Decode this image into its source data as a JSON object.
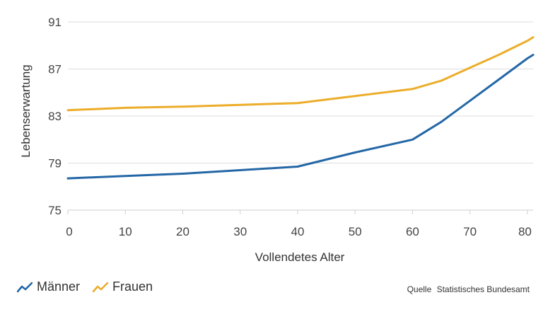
{
  "chart_data": {
    "type": "line",
    "xlabel": "Vollendetes Alter",
    "ylabel": "Lebenserwartung",
    "xlim": [
      0,
      81
    ],
    "ylim": [
      75,
      91
    ],
    "x_ticks": [
      0,
      10,
      20,
      30,
      40,
      50,
      60,
      70,
      80
    ],
    "y_ticks": [
      75,
      79,
      83,
      87,
      91
    ],
    "grid": true,
    "legend_position": "bottom-left",
    "series": [
      {
        "name": "Männer",
        "color": "#2467a6",
        "x": [
          0,
          10,
          20,
          30,
          40,
          50,
          60,
          65,
          70,
          75,
          80,
          81
        ],
        "y": [
          77.7,
          77.9,
          78.1,
          78.4,
          78.7,
          79.9,
          81.0,
          82.5,
          84.3,
          86.1,
          87.9,
          88.2
        ]
      },
      {
        "name": "Frauen",
        "color": "#ecad2a",
        "x": [
          0,
          10,
          20,
          30,
          40,
          50,
          60,
          65,
          70,
          75,
          80,
          81
        ],
        "y": [
          83.5,
          83.7,
          83.8,
          83.95,
          84.1,
          84.7,
          85.3,
          86.0,
          87.1,
          88.2,
          89.4,
          89.7
        ]
      }
    ]
  },
  "legend": {
    "items": [
      {
        "label": "Männer",
        "color": "#2467a6",
        "icon": "trend-line-icon"
      },
      {
        "label": "Frauen",
        "color": "#ecad2a",
        "icon": "trend-line-icon"
      }
    ]
  },
  "source": {
    "prefix": "Quelle",
    "name": "Statistisches Bundesamt"
  }
}
